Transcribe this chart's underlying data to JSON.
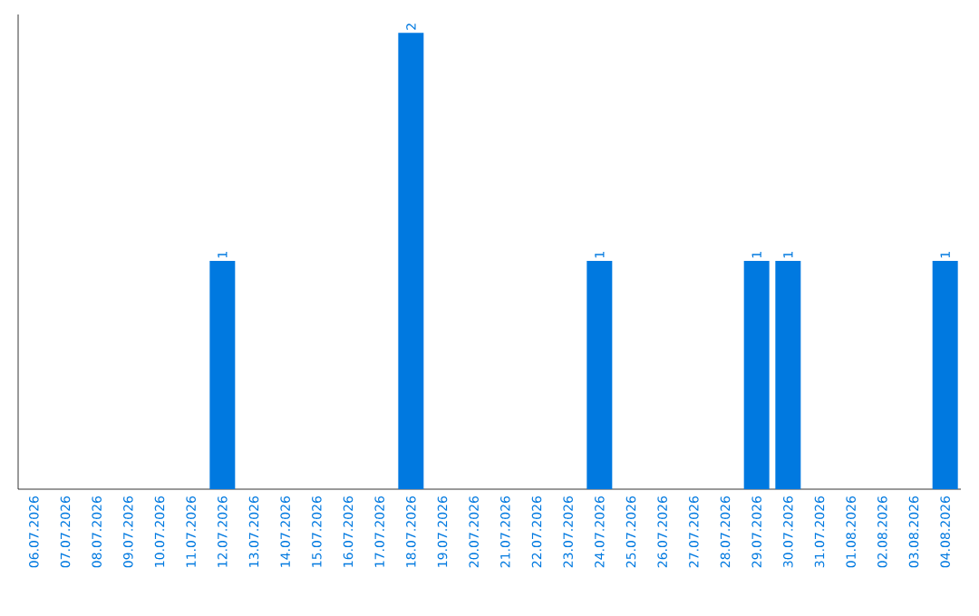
{
  "chart_data": {
    "type": "bar",
    "categories": [
      "06.07.2026",
      "07.07.2026",
      "08.07.2026",
      "09.07.2026",
      "10.07.2026",
      "11.07.2026",
      "12.07.2026",
      "13.07.2026",
      "14.07.2026",
      "15.07.2026",
      "16.07.2026",
      "17.07.2026",
      "18.07.2026",
      "19.07.2026",
      "20.07.2026",
      "21.07.2026",
      "22.07.2026",
      "23.07.2026",
      "24.07.2026",
      "25.07.2026",
      "26.07.2026",
      "27.07.2026",
      "28.07.2026",
      "29.07.2026",
      "30.07.2026",
      "31.07.2026",
      "01.08.2026",
      "02.08.2026",
      "03.08.2026",
      "04.08.2026"
    ],
    "values": [
      0,
      0,
      0,
      0,
      0,
      0,
      1,
      0,
      0,
      0,
      0,
      0,
      2,
      0,
      0,
      0,
      0,
      0,
      1,
      0,
      0,
      0,
      0,
      1,
      1,
      0,
      0,
      0,
      0,
      1
    ],
    "value_labels": [
      null,
      null,
      null,
      null,
      null,
      null,
      "1",
      null,
      null,
      null,
      null,
      null,
      "2",
      null,
      null,
      null,
      null,
      null,
      "1",
      null,
      null,
      null,
      null,
      "1",
      "1",
      null,
      null,
      null,
      null,
      "1"
    ],
    "color": "#0079e0"
  }
}
